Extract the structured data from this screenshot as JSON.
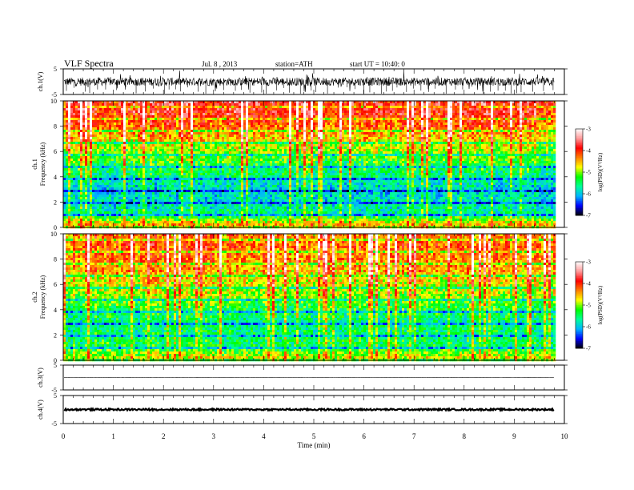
{
  "header": {
    "title": "VLF Spectra",
    "date": "Jul. 8 , 2013",
    "station": "station=ATH",
    "start": "start UT = 10:40: 0"
  },
  "chart_data": [
    {
      "type": "line",
      "name": "ch1-waveform",
      "ylabel": "ch.1(V)",
      "ylim": [
        -5,
        5
      ],
      "yticks": [
        "5",
        "-5"
      ],
      "xlim": [
        0,
        10
      ],
      "xunit": "min",
      "baseline": 0,
      "amplitude": 1.6
    },
    {
      "type": "heatmap",
      "name": "ch1-spectrogram",
      "ylabel": "ch.1\nFrequency (kHz)",
      "ylabel_ch": "ch.1",
      "ylabel_freq": "Frequency (kHz)",
      "ylim": [
        0,
        10
      ],
      "yticks": [
        "0",
        "2",
        "4",
        "6",
        "8",
        "10"
      ],
      "xlim": [
        0,
        10
      ],
      "data_extent_min": 9.8,
      "colorbar": {
        "label": "log(PSD)(V²/Hz)",
        "range": [
          -7,
          -3
        ],
        "ticks": [
          "-3",
          "-4",
          "-5",
          "-6",
          "-7"
        ]
      },
      "log_psd_profile": {
        "freq_khz": [
          0,
          1,
          2,
          3,
          4,
          5,
          6,
          7,
          8,
          9,
          10
        ],
        "typical_log_psd": [
          -4.2,
          -5.6,
          -5.8,
          -5.9,
          -5.6,
          -5.3,
          -5.0,
          -4.6,
          -4.2,
          -3.9,
          -3.8
        ]
      }
    },
    {
      "type": "heatmap",
      "name": "ch2-spectrogram",
      "ylabel": "ch.2\nFrequency (kHz)",
      "ylabel_ch": "ch.2",
      "ylabel_freq": "Frequency (kHz)",
      "ylim": [
        0,
        10
      ],
      "yticks": [
        "0",
        "2",
        "4",
        "6",
        "8",
        "10"
      ],
      "xlim": [
        0,
        10
      ],
      "data_extent_min": 9.8,
      "colorbar": {
        "label": "log(PSD)(V²/Hz)",
        "range": [
          -7,
          -3
        ],
        "ticks": [
          "-3",
          "-4",
          "-5",
          "-6",
          "-7"
        ]
      },
      "log_psd_profile": {
        "freq_khz": [
          0,
          1,
          2,
          3,
          4,
          5,
          6,
          7,
          8,
          9,
          10
        ],
        "typical_log_psd": [
          -4.6,
          -5.4,
          -5.5,
          -5.6,
          -5.4,
          -5.0,
          -4.8,
          -4.5,
          -4.3,
          -4.2,
          -4.3
        ]
      }
    },
    {
      "type": "line",
      "name": "ch3-waveform",
      "ylabel": "ch.3(V)",
      "ylim": [
        -5,
        5
      ],
      "yticks": [
        "5",
        "-5"
      ],
      "xlim": [
        0,
        10
      ],
      "baseline": 0,
      "amplitude": 0.05
    },
    {
      "type": "line",
      "name": "ch4-waveform",
      "ylabel": "ch.4(V)",
      "ylim": [
        -5,
        5
      ],
      "yticks": [
        "5",
        "-5"
      ],
      "xlim": [
        0,
        10
      ],
      "baseline": 0,
      "amplitude": 0.3
    }
  ],
  "xaxis": {
    "label": "Time (min)",
    "ticks": [
      "0",
      "1",
      "2",
      "3",
      "4",
      "5",
      "6",
      "7",
      "8",
      "9",
      "10"
    ]
  },
  "colors": {
    "scale": [
      "#000000",
      "#0000ff",
      "#00b4ff",
      "#00ff9a",
      "#00ff00",
      "#ffff00",
      "#ff8000",
      "#ff0000",
      "#ff9a9a",
      "#ffffff"
    ]
  }
}
